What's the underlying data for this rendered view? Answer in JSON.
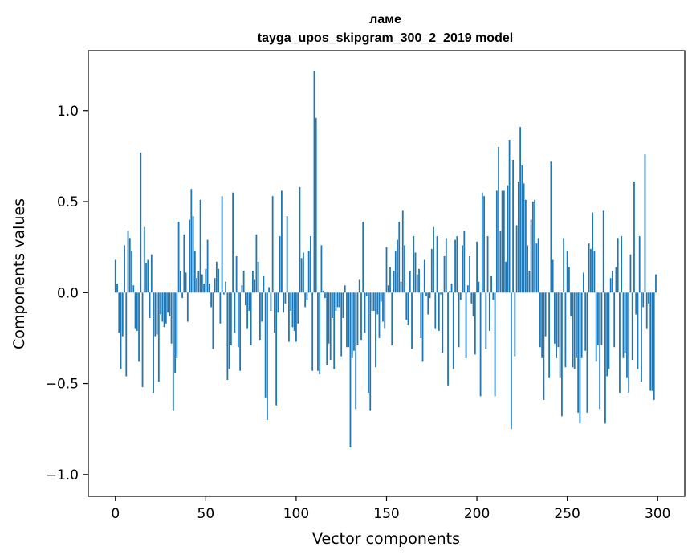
{
  "chart_data": {
    "type": "bar",
    "title_line1": "ламе",
    "title_line2": "tayga_upos_skipgram_300_2_2019 model",
    "xlabel": "Vector components",
    "ylabel": "Components values",
    "xlim": [
      -15,
      315
    ],
    "ylim": [
      -1.12,
      1.33
    ],
    "xticks": [
      0,
      50,
      100,
      150,
      200,
      250,
      300
    ],
    "xtick_labels": [
      "0",
      "50",
      "100",
      "150",
      "200",
      "250",
      "300"
    ],
    "yticks": [
      -1.0,
      -0.5,
      0.0,
      0.5,
      1.0
    ],
    "ytick_labels": [
      "−1.0",
      "−0.5",
      "0.0",
      "0.5",
      "1.0"
    ],
    "color": "#1f77b4",
    "values": [
      0.18,
      0.05,
      -0.22,
      -0.42,
      -0.24,
      0.26,
      -0.46,
      0.34,
      0.3,
      0.23,
      0.04,
      -0.2,
      -0.21,
      -0.38,
      0.77,
      -0.52,
      0.36,
      0.16,
      0.18,
      -0.14,
      0.21,
      -0.55,
      -0.24,
      -0.23,
      -0.49,
      -0.12,
      -0.16,
      -0.19,
      -0.17,
      -0.11,
      -0.13,
      -0.28,
      -0.65,
      -0.44,
      -0.36,
      0.39,
      0.12,
      -0.03,
      0.32,
      0.11,
      -0.16,
      0.4,
      0.57,
      0.42,
      0.23,
      0.08,
      0.12,
      0.51,
      0.1,
      0.05,
      0.13,
      0.29,
      0.05,
      -0.08,
      -0.31,
      0.08,
      0.17,
      0.13,
      -0.17,
      0.53,
      -0.01,
      0.06,
      -0.48,
      -0.42,
      -0.29,
      0.55,
      -0.22,
      0.2,
      -0.3,
      -0.43,
      0.04,
      0.12,
      -0.07,
      -0.2,
      -0.1,
      -0.29,
      0.12,
      0.07,
      0.32,
      0.17,
      -0.26,
      -0.16,
      0.09,
      -0.58,
      -0.7,
      0.03,
      -0.1,
      0.53,
      -0.22,
      -0.62,
      -0.11,
      0.31,
      0.56,
      -0.11,
      -0.06,
      0.42,
      -0.27,
      -0.1,
      -0.19,
      -0.21,
      -0.27,
      -0.17,
      0.58,
      0.19,
      0.22,
      -0.08,
      -0.04,
      0.23,
      0.31,
      -0.43,
      1.22,
      0.96,
      -0.43,
      -0.45,
      0.26,
      0.01,
      -0.03,
      -0.4,
      -0.28,
      -0.37,
      -0.14,
      -0.42,
      -0.1,
      -0.08,
      -0.08,
      -0.35,
      -0.14,
      0.04,
      -0.3,
      -0.3,
      -0.85,
      -0.36,
      -0.32,
      -0.64,
      -0.29,
      0.07,
      -0.26,
      0.39,
      -0.22,
      -0.02,
      -0.55,
      -0.65,
      -0.1,
      -0.1,
      -0.41,
      -0.12,
      -0.25,
      -0.05,
      -0.16,
      -0.2,
      0.25,
      0.04,
      0.14,
      -0.29,
      0.12,
      0.23,
      0.29,
      0.39,
      0.06,
      0.45,
      0.26,
      -0.15,
      -0.18,
      0.12,
      -0.31,
      0.31,
      0.22,
      0.1,
      0.13,
      -0.25,
      -0.38,
      0.18,
      -0.02,
      -0.12,
      -0.03,
      0.24,
      0.36,
      -0.2,
      0.31,
      -0.21,
      -0.01,
      -0.33,
      0.2,
      0.3,
      -0.51,
      0.01,
      0.05,
      -0.42,
      0.29,
      0.31,
      -0.3,
      -0.04,
      0.26,
      0.34,
      -0.36,
      0.04,
      0.2,
      -0.06,
      -0.13,
      -0.34,
      0.28,
      0.06,
      -0.57,
      0.55,
      0.53,
      -0.31,
      0.31,
      -0.21,
      0.09,
      -0.04,
      -0.57,
      0.56,
      0.8,
      0.34,
      0.56,
      0.56,
      0.17,
      0.59,
      0.84,
      -0.75,
      0.73,
      -0.35,
      0.37,
      0.61,
      0.91,
      0.7,
      0.6,
      0.51,
      0.26,
      0.12,
      0.4,
      0.5,
      0.51,
      0.27,
      0.3,
      -0.3,
      -0.36,
      -0.59,
      -0.24,
      0.0,
      -0.47,
      0.72,
      0.18,
      -0.28,
      -0.36,
      -0.3,
      -0.47,
      -0.68,
      0.3,
      -0.41,
      0.23,
      0.14,
      -0.13,
      -0.41,
      -0.42,
      -0.36,
      -0.66,
      -0.72,
      -0.36,
      0.11,
      -0.32,
      -0.66,
      0.27,
      0.24,
      0.44,
      0.23,
      -0.38,
      -0.29,
      -0.64,
      -0.29,
      0.45,
      -0.72,
      -0.46,
      -0.42,
      0.08,
      0.12,
      -0.3,
      0.14,
      0.3,
      -0.55,
      0.31,
      -0.36,
      -0.33,
      -0.47,
      -0.55,
      0.21,
      -0.37,
      0.61,
      -0.12,
      -0.42,
      0.31,
      -0.49,
      -0.08,
      0.76,
      -0.2,
      -0.06,
      -0.54,
      -0.54,
      -0.59,
      0.1
    ]
  }
}
